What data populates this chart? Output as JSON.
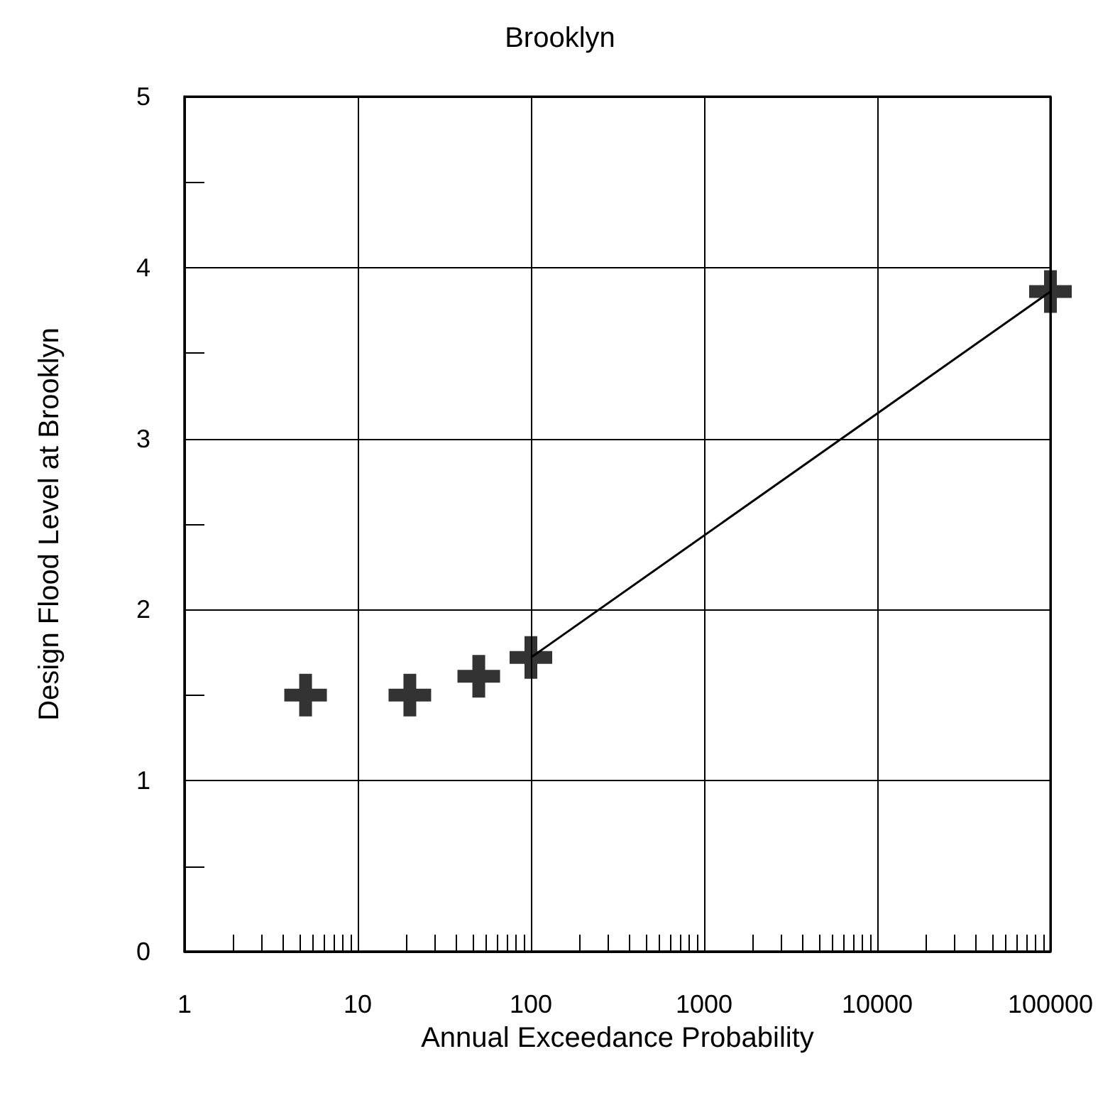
{
  "chart_data": {
    "type": "scatter",
    "title": "Brooklyn",
    "xlabel": "Annual Exceedance Probability",
    "ylabel": "Design Flood Level at Brooklyn",
    "log": "x",
    "xlim": [
      1,
      100000
    ],
    "xticks": [
      1,
      10,
      100,
      1000,
      10000,
      100000
    ],
    "ylim": [
      0,
      5
    ],
    "yticks": [
      0,
      1,
      2,
      3,
      4,
      5
    ],
    "grid": true,
    "marker": "cross",
    "series": [
      {
        "color": "#000000",
        "x": [
          5,
          20,
          50,
          100,
          100000
        ],
        "values": [
          1.5,
          1.5,
          1.61,
          1.72,
          3.86
        ]
      },
      {
        "type": "line",
        "color": "#000000",
        "marker": "none",
        "line_style": "solid",
        "x": [
          100,
          100000
        ],
        "values": [
          1.72,
          3.86
        ]
      }
    ]
  }
}
